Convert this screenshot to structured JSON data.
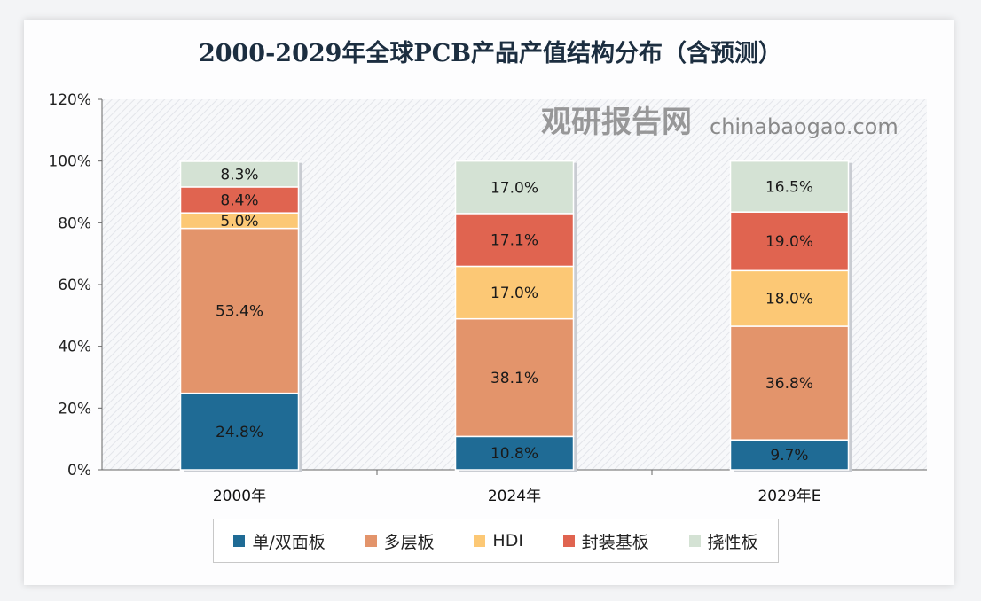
{
  "chart_data": {
    "type": "bar",
    "stacked": true,
    "title": "2000-2029年全球PCB产品产值结构分布（含预测）",
    "categories": [
      "2000年",
      "2024年",
      "2029年E"
    ],
    "series": [
      {
        "name": "单/双面板",
        "color": "#1f6b95",
        "values": [
          24.8,
          10.8,
          9.7
        ]
      },
      {
        "name": "多层板",
        "color": "#e3946b",
        "values": [
          53.4,
          38.1,
          36.8
        ]
      },
      {
        "name": "HDI",
        "color": "#fcc875",
        "values": [
          5.0,
          17.0,
          18.0
        ]
      },
      {
        "name": "封装基板",
        "color": "#e06450",
        "values": [
          8.4,
          17.1,
          19.0
        ]
      },
      {
        "name": "挠性板",
        "color": "#d4e2d4",
        "values": [
          8.3,
          17.0,
          16.5
        ]
      }
    ],
    "labels": [
      [
        "24.8%",
        "10.8%",
        "9.7%"
      ],
      [
        "53.4%",
        "38.1%",
        "36.8%"
      ],
      [
        "5.0%",
        "17.0%",
        "18.0%"
      ],
      [
        "8.4%",
        "17.1%",
        "19.0%"
      ],
      [
        "8.3%",
        "17.0%",
        "16.5%"
      ]
    ],
    "yticks": [
      "0%",
      "20%",
      "40%",
      "60%",
      "80%",
      "100%",
      "120%"
    ],
    "ylim": [
      0,
      120
    ],
    "legend": "bottom"
  },
  "watermark": {
    "brand": "观研报告网",
    "site": "chinabaogao.com"
  }
}
